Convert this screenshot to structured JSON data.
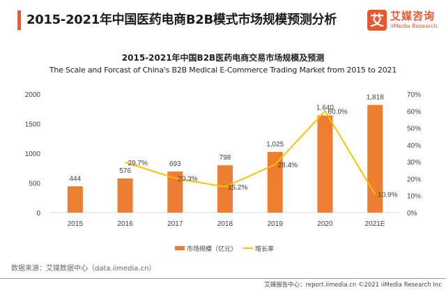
{
  "header": {
    "title": "2015-2021年中国医药电商B2B模式市场规模预测分析",
    "logo_mark": "艾",
    "logo_cn": "艾媒咨询",
    "logo_en": "iiMedia Research",
    "accent_color": "#f05a28"
  },
  "chart_data": {
    "type": "bar",
    "title": "2015-2021年中国B2B医药电商交易市场规模及预测",
    "subtitle": "The Scale and Forcast of China's B2B Medical E-Commerce Trading Market from 2015 to 2021",
    "categories": [
      "2015",
      "2016",
      "2017",
      "2018",
      "2019",
      "2020",
      "2021E"
    ],
    "series": [
      {
        "name": "市场规模（亿元）",
        "type": "bar",
        "axis": "left",
        "color": "#ed7d31",
        "values": [
          444,
          576,
          693,
          798,
          1025,
          1640,
          1818
        ],
        "labels": [
          "444",
          "576",
          "693",
          "798",
          "1,025",
          "1,640",
          "1,818"
        ]
      },
      {
        "name": "增长率",
        "type": "line",
        "axis": "right",
        "color": "#ffc000",
        "values": [
          null,
          29.7,
          20.3,
          15.2,
          28.4,
          60.0,
          10.9
        ],
        "labels": [
          "",
          "29.7%",
          "20.3%",
          "15.2%",
          "28.4%",
          "60.0%",
          "10.9%"
        ]
      }
    ],
    "y_left": {
      "range": [
        0,
        2000
      ],
      "ticks": [
        "0",
        "500",
        "1000",
        "1500",
        "2000"
      ]
    },
    "y_right": {
      "range": [
        0,
        70
      ],
      "ticks": [
        "0%",
        "10%",
        "20%",
        "30%",
        "40%",
        "50%",
        "60%",
        "70%"
      ]
    },
    "grid": false,
    "legend": "bottom-center"
  },
  "footer": {
    "source": "数据来源：艾媒数据中心（data.iimedia.cn）",
    "copyright": "艾媒报告中心：report.iimedia.cn   ©2021  iiMedia Research  Inc"
  }
}
